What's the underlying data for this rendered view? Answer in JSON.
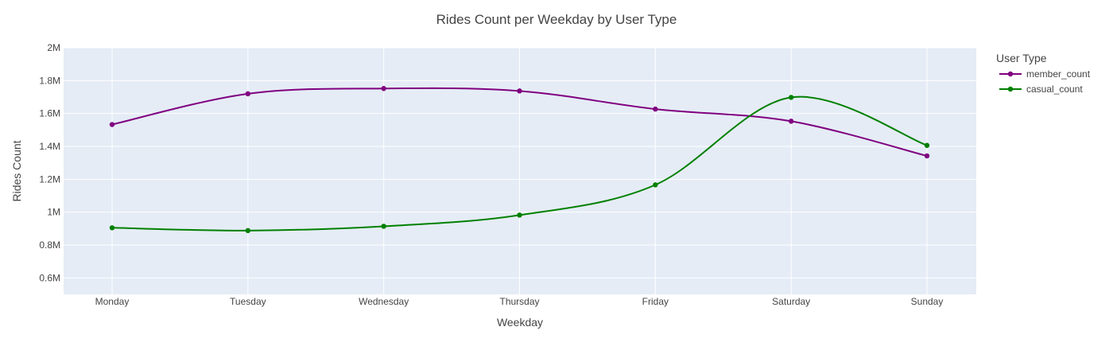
{
  "chart_data": {
    "type": "line",
    "title": "Rides Count per Weekday by User Type",
    "xlabel": "Weekday",
    "ylabel": "Rides Count",
    "categories": [
      "Monday",
      "Tuesday",
      "Wednesday",
      "Thursday",
      "Friday",
      "Saturday",
      "Sunday"
    ],
    "ylim": [
      500000,
      2000000
    ],
    "y_ticks": [
      600000,
      800000,
      1000000,
      1200000,
      1400000,
      1600000,
      1800000,
      2000000
    ],
    "y_tick_labels": [
      "0.6M",
      "0.8M",
      "1M",
      "1.2M",
      "1.4M",
      "1.6M",
      "1.8M",
      "2M"
    ],
    "grid": true,
    "line_shape": "spline",
    "legend": {
      "title": "User Type",
      "placement": "top-right-outside"
    },
    "plot_background": "#e5ecf6",
    "series": [
      {
        "name": "member_count",
        "color": "#800080",
        "values": [
          1533000,
          1720000,
          1752000,
          1737000,
          1627000,
          1553000,
          1342000
        ]
      },
      {
        "name": "casual_count",
        "color": "#008000",
        "values": [
          905000,
          888000,
          914000,
          982000,
          1166000,
          1698000,
          1406000
        ]
      }
    ]
  }
}
